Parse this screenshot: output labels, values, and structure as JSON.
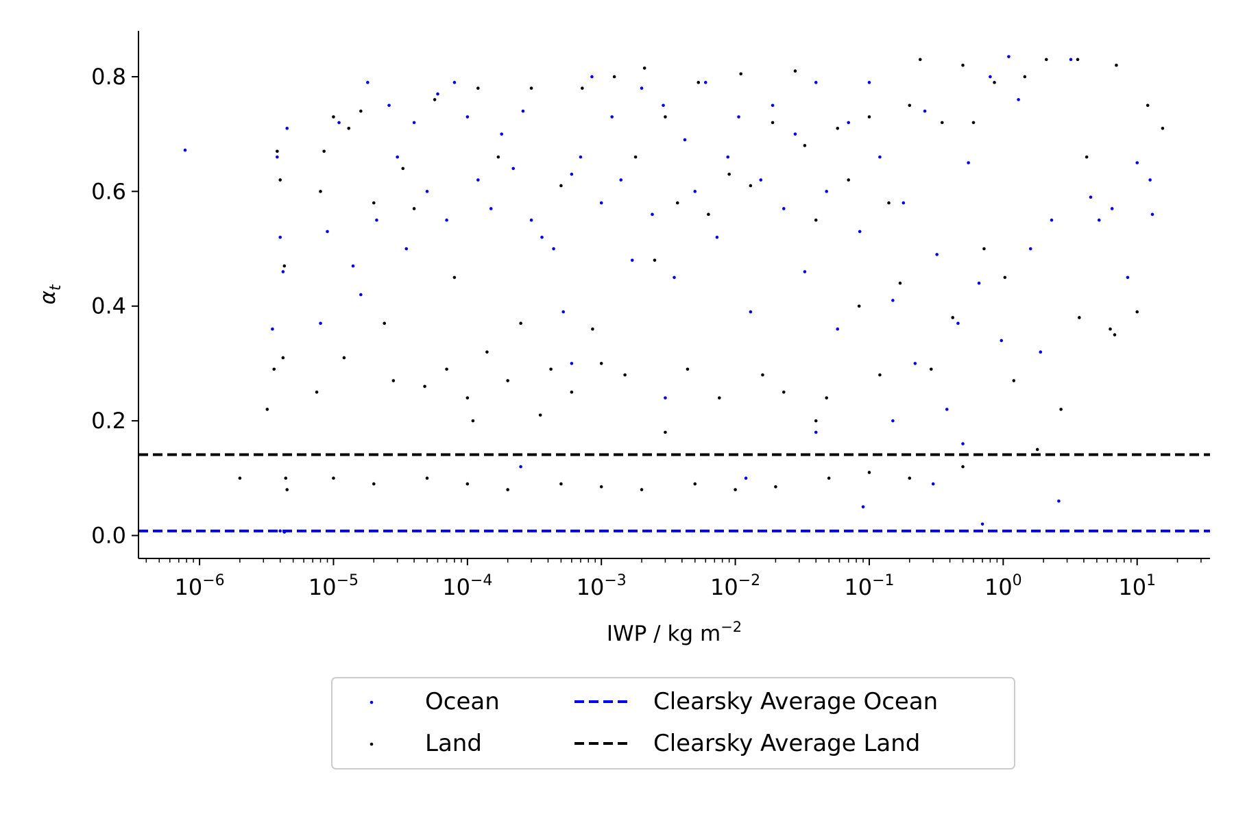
{
  "chart_data": {
    "type": "scatter",
    "title": "",
    "xlabel": "IWP / kg m",
    "xlabel_exponent": "−2",
    "ylabel": "α",
    "ylabel_subscript": "t",
    "x_scale": "log",
    "xlim": [
      3.5e-07,
      35
    ],
    "ylim": [
      -0.04,
      0.88
    ],
    "x_tick_labels": [
      {
        "base": "10",
        "exp": "−6",
        "value": 1e-06
      },
      {
        "base": "10",
        "exp": "−5",
        "value": 1e-05
      },
      {
        "base": "10",
        "exp": "−4",
        "value": 0.0001
      },
      {
        "base": "10",
        "exp": "−3",
        "value": 0.001
      },
      {
        "base": "10",
        "exp": "−2",
        "value": 0.01
      },
      {
        "base": "10",
        "exp": "−1",
        "value": 0.1
      },
      {
        "base": "10",
        "exp": "0",
        "value": 1
      },
      {
        "base": "10",
        "exp": "1",
        "value": 10
      }
    ],
    "y_ticks": [
      0.0,
      0.2,
      0.4,
      0.6,
      0.8
    ],
    "y_tick_labels": [
      "0.0",
      "0.2",
      "0.4",
      "0.6",
      "0.8"
    ],
    "grid": false,
    "legend_position": "bottom-center, below axes",
    "hlines": [
      {
        "name": "Clearsky Average Ocean",
        "y": 0.008,
        "color": "#0000ff",
        "style": "dashed"
      },
      {
        "name": "Clearsky Average Land",
        "y": 0.141,
        "color": "#000000",
        "style": "dashed"
      }
    ],
    "series": [
      {
        "name": "Ocean",
        "color": "#0000ff",
        "marker": "dot",
        "points": [
          [
            7.8e-07,
            0.672
          ],
          [
            3.5e-06,
            0.36
          ],
          [
            3.8e-06,
            0.66
          ],
          [
            4e-06,
            0.52
          ],
          [
            4.2e-06,
            0.46
          ],
          [
            4.5e-06,
            0.71
          ],
          [
            4e-06,
            0.008
          ],
          [
            4.3e-06,
            0.006
          ],
          [
            8e-06,
            0.37
          ],
          [
            9e-06,
            0.53
          ],
          [
            1.1e-05,
            0.72
          ],
          [
            1.4e-05,
            0.47
          ],
          [
            1.6e-05,
            0.42
          ],
          [
            1.8e-05,
            0.79
          ],
          [
            2.1e-05,
            0.55
          ],
          [
            2.6e-05,
            0.75
          ],
          [
            3e-05,
            0.66
          ],
          [
            3.5e-05,
            0.5
          ],
          [
            4e-05,
            0.72
          ],
          [
            5e-05,
            0.6
          ],
          [
            6e-05,
            0.77
          ],
          [
            7e-05,
            0.55
          ],
          [
            8e-05,
            0.79
          ],
          [
            0.0001,
            0.73
          ],
          [
            0.00012,
            0.62
          ],
          [
            0.00015,
            0.57
          ],
          [
            0.00018,
            0.7
          ],
          [
            0.00022,
            0.64
          ],
          [
            0.00026,
            0.74
          ],
          [
            0.0003,
            0.55
          ],
          [
            0.00036,
            0.52
          ],
          [
            0.00044,
            0.5
          ],
          [
            0.00052,
            0.39
          ],
          [
            0.0006,
            0.63
          ],
          [
            0.0007,
            0.66
          ],
          [
            0.00085,
            0.8
          ],
          [
            0.001,
            0.58
          ],
          [
            0.0012,
            0.73
          ],
          [
            0.0014,
            0.62
          ],
          [
            0.0017,
            0.48
          ],
          [
            0.002,
            0.78
          ],
          [
            0.0024,
            0.56
          ],
          [
            0.0029,
            0.75
          ],
          [
            0.0035,
            0.45
          ],
          [
            0.0042,
            0.69
          ],
          [
            0.005,
            0.6
          ],
          [
            0.006,
            0.79
          ],
          [
            0.0073,
            0.52
          ],
          [
            0.0088,
            0.66
          ],
          [
            0.0106,
            0.73
          ],
          [
            0.013,
            0.39
          ],
          [
            0.0155,
            0.62
          ],
          [
            0.019,
            0.75
          ],
          [
            0.023,
            0.57
          ],
          [
            0.028,
            0.7
          ],
          [
            0.033,
            0.46
          ],
          [
            0.04,
            0.79
          ],
          [
            0.048,
            0.6
          ],
          [
            0.058,
            0.36
          ],
          [
            0.07,
            0.72
          ],
          [
            0.085,
            0.53
          ],
          [
            0.1,
            0.79
          ],
          [
            0.12,
            0.66
          ],
          [
            0.15,
            0.41
          ],
          [
            0.18,
            0.58
          ],
          [
            0.22,
            0.3
          ],
          [
            0.26,
            0.74
          ],
          [
            0.32,
            0.49
          ],
          [
            0.38,
            0.22
          ],
          [
            0.46,
            0.37
          ],
          [
            0.55,
            0.65
          ],
          [
            0.66,
            0.44
          ],
          [
            0.8,
            0.8
          ],
          [
            0.97,
            0.34
          ],
          [
            1.1,
            0.835
          ],
          [
            1.3,
            0.76
          ],
          [
            1.6,
            0.5
          ],
          [
            1.9,
            0.32
          ],
          [
            2.3,
            0.55
          ],
          [
            2.6,
            0.06
          ],
          [
            3.2,
            0.83
          ],
          [
            4.5,
            0.59
          ],
          [
            5.2,
            0.55
          ],
          [
            6.5,
            0.57
          ],
          [
            8.5,
            0.45
          ],
          [
            10,
            0.65
          ],
          [
            12.5,
            0.62
          ],
          [
            13,
            0.56
          ],
          [
            0.15,
            0.2
          ],
          [
            0.003,
            0.24
          ],
          [
            0.012,
            0.1
          ],
          [
            0.04,
            0.18
          ],
          [
            0.00025,
            0.12
          ],
          [
            0.0006,
            0.3
          ],
          [
            0.5,
            0.16
          ],
          [
            0.7,
            0.02
          ],
          [
            0.09,
            0.05
          ],
          [
            0.3,
            0.09
          ]
        ]
      },
      {
        "name": "Land",
        "color": "#000000",
        "marker": "dot",
        "points": [
          [
            2e-06,
            0.1
          ],
          [
            3.2e-06,
            0.22
          ],
          [
            3.6e-06,
            0.29
          ],
          [
            3.8e-06,
            0.67
          ],
          [
            4e-06,
            0.62
          ],
          [
            4.2e-06,
            0.31
          ],
          [
            4.3e-06,
            0.47
          ],
          [
            4.4e-06,
            0.1
          ],
          [
            4.5e-06,
            0.08
          ],
          [
            7.5e-06,
            0.25
          ],
          [
            8e-06,
            0.6
          ],
          [
            8.5e-06,
            0.67
          ],
          [
            1e-05,
            0.73
          ],
          [
            1.2e-05,
            0.31
          ],
          [
            1.3e-05,
            0.71
          ],
          [
            1.6e-05,
            0.74
          ],
          [
            2e-05,
            0.58
          ],
          [
            2.4e-05,
            0.37
          ],
          [
            2.8e-05,
            0.27
          ],
          [
            3.3e-05,
            0.64
          ],
          [
            4e-05,
            0.57
          ],
          [
            4.8e-05,
            0.26
          ],
          [
            5.7e-05,
            0.76
          ],
          [
            7e-05,
            0.29
          ],
          [
            8e-05,
            0.45
          ],
          [
            0.0001,
            0.24
          ],
          [
            0.00012,
            0.78
          ],
          [
            0.00014,
            0.32
          ],
          [
            0.00017,
            0.66
          ],
          [
            0.0002,
            0.27
          ],
          [
            0.00025,
            0.37
          ],
          [
            0.0003,
            0.78
          ],
          [
            0.00035,
            0.21
          ],
          [
            0.00042,
            0.29
          ],
          [
            0.0005,
            0.61
          ],
          [
            0.0006,
            0.25
          ],
          [
            0.00072,
            0.78
          ],
          [
            0.00086,
            0.36
          ],
          [
            0.001,
            0.3
          ],
          [
            0.00125,
            0.8
          ],
          [
            0.0015,
            0.28
          ],
          [
            0.0018,
            0.66
          ],
          [
            0.0021,
            0.815
          ],
          [
            0.0025,
            0.48
          ],
          [
            0.003,
            0.73
          ],
          [
            0.0037,
            0.58
          ],
          [
            0.0044,
            0.29
          ],
          [
            0.0053,
            0.79
          ],
          [
            0.0063,
            0.56
          ],
          [
            0.0076,
            0.24
          ],
          [
            0.009,
            0.63
          ],
          [
            0.011,
            0.805
          ],
          [
            0.013,
            0.61
          ],
          [
            0.016,
            0.28
          ],
          [
            0.019,
            0.72
          ],
          [
            0.023,
            0.25
          ],
          [
            0.028,
            0.81
          ],
          [
            0.033,
            0.68
          ],
          [
            0.04,
            0.55
          ],
          [
            0.048,
            0.24
          ],
          [
            0.058,
            0.71
          ],
          [
            0.07,
            0.62
          ],
          [
            0.084,
            0.4
          ],
          [
            0.1,
            0.73
          ],
          [
            0.12,
            0.28
          ],
          [
            0.14,
            0.58
          ],
          [
            0.17,
            0.44
          ],
          [
            0.2,
            0.75
          ],
          [
            0.24,
            0.83
          ],
          [
            0.29,
            0.29
          ],
          [
            0.35,
            0.72
          ],
          [
            0.42,
            0.38
          ],
          [
            0.5,
            0.82
          ],
          [
            0.6,
            0.72
          ],
          [
            0.72,
            0.5
          ],
          [
            0.86,
            0.79
          ],
          [
            1.03,
            0.45
          ],
          [
            1.2,
            0.27
          ],
          [
            1.45,
            0.8
          ],
          [
            1.8,
            0.15
          ],
          [
            2.1,
            0.83
          ],
          [
            2.7,
            0.22
          ],
          [
            3.6,
            0.83
          ],
          [
            3.7,
            0.38
          ],
          [
            4.2,
            0.66
          ],
          [
            6.3,
            0.36
          ],
          [
            6.8,
            0.35
          ],
          [
            7,
            0.82
          ],
          [
            10,
            0.39
          ],
          [
            12,
            0.75
          ],
          [
            15.5,
            0.71
          ],
          [
            1e-05,
            0.1
          ],
          [
            2e-05,
            0.09
          ],
          [
            5e-05,
            0.1
          ],
          [
            0.0001,
            0.09
          ],
          [
            0.0002,
            0.08
          ],
          [
            0.0005,
            0.09
          ],
          [
            0.001,
            0.085
          ],
          [
            0.002,
            0.08
          ],
          [
            0.005,
            0.09
          ],
          [
            0.01,
            0.08
          ],
          [
            0.02,
            0.085
          ],
          [
            0.05,
            0.1
          ],
          [
            0.1,
            0.11
          ],
          [
            0.2,
            0.1
          ],
          [
            0.5,
            0.12
          ],
          [
            0.00011,
            0.2
          ],
          [
            0.003,
            0.18
          ],
          [
            0.04,
            0.2
          ]
        ]
      }
    ]
  },
  "legend": {
    "ocean_label": "Ocean",
    "land_label": "Land",
    "ocean_avg_label": "Clearsky Average Ocean",
    "land_avg_label": "Clearsky Average Land"
  }
}
